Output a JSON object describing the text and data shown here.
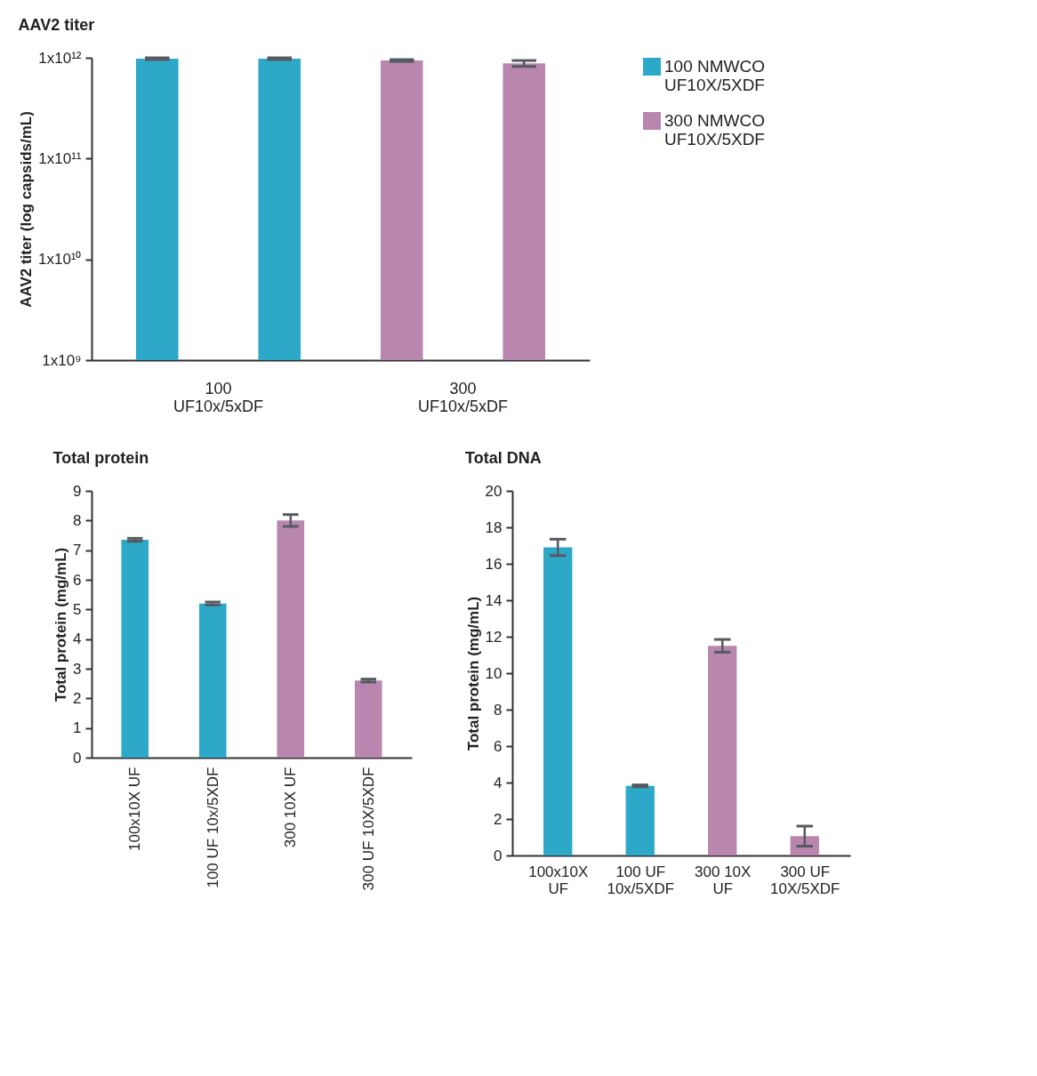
{
  "chart_data": [
    {
      "type": "bar",
      "title": "AAV2 titer",
      "ylabel": "AAV2 titer (log capsids/mL)",
      "categories": [
        null,
        null,
        null,
        null
      ],
      "series": [
        {
          "name": "100 NMWCO UF10X/5XDF",
          "color": "#2ea8c8",
          "values": [
            980000000000,
            980000000000,
            null,
            null
          ],
          "errors": [
            20000000000,
            20000000000,
            null,
            null
          ]
        },
        {
          "name": "300 NMWCO UF10X/5XDF",
          "color": "#b886ae",
          "values": [
            null,
            null,
            940000000000,
            880000000000
          ],
          "errors": [
            null,
            null,
            20000000000,
            60000000000
          ]
        }
      ],
      "log": true,
      "ylim": [
        1000000000,
        1000000000000
      ],
      "yticks": [
        {
          "value": 1000000000,
          "label": "1x10⁹"
        },
        {
          "value": 10000000000,
          "label": "1x10¹⁰"
        },
        {
          "value": 100000000000,
          "label": "1x10¹¹"
        },
        {
          "value": 1000000000000,
          "label": "1x10¹²"
        }
      ],
      "legend": "right",
      "grid": false,
      "annotations": [
        "100 UF10x/5xDF",
        "300 UF10x/5xDF"
      ]
    },
    {
      "type": "bar",
      "title": "Total protein",
      "ylabel": "Total protein (mg/mL)",
      "categories": [
        "100x10X UF",
        "100 UF 10x/5XDF",
        "300 10X UF",
        "300 UF 10X/5XDF"
      ],
      "values": [
        7.35,
        5.2,
        8.0,
        2.6
      ],
      "colors": [
        "#2ea8c8",
        "#2ea8c8",
        "#b886ae",
        "#b886ae"
      ],
      "errors": [
        0.05,
        0.05,
        0.2,
        0.05
      ],
      "ylim": [
        0,
        9
      ],
      "yticks": [
        0,
        1,
        2,
        3,
        4,
        5,
        6,
        7,
        8,
        9
      ],
      "grid": false,
      "legend": false
    },
    {
      "type": "bar",
      "title": "Total DNA",
      "ylabel": "Total protein (mg/mL)",
      "categories": [
        "100x10X UF",
        "100 UF 10x/5XDF",
        "300 10X UF",
        "300 UF 10X/5XDF"
      ],
      "values": [
        16.9,
        3.82,
        11.5,
        1.06
      ],
      "colors": [
        "#2ea8c8",
        "#2ea8c8",
        "#b886ae",
        "#b886ae"
      ],
      "errors": [
        0.45,
        0.05,
        0.35,
        0.55
      ],
      "ylim": [
        0,
        20
      ],
      "yticks": [
        0,
        2,
        4,
        6,
        8,
        10,
        12,
        14,
        16,
        18,
        20
      ],
      "grid": false,
      "legend": false
    }
  ]
}
